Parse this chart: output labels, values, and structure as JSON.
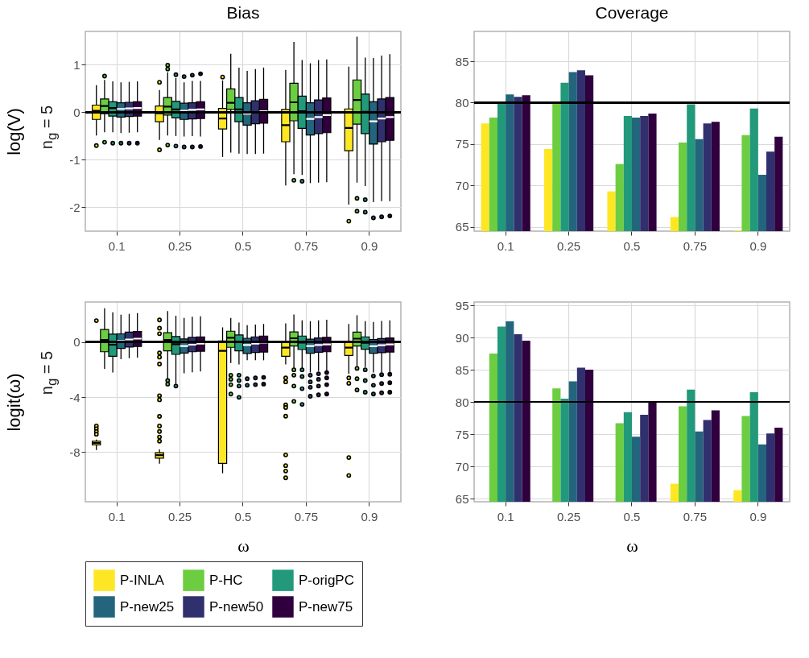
{
  "chart_data": [
    {
      "type": "box",
      "title": "Bias",
      "ylabel": "log(V)",
      "annotations": [
        "n$_{g}$ = 5"
      ],
      "categories": [
        "0.1",
        "0.25",
        "0.5",
        "0.75",
        "0.9"
      ],
      "ylim": [
        -2.5,
        1.7
      ],
      "yticks": [
        -2,
        -1,
        0,
        1
      ],
      "grid": true,
      "legend": "bottom",
      "ref_lines": [
        {
          "axis": "y",
          "value": 0
        }
      ],
      "series": [
        {
          "name": "P-INLA",
          "color": "#fde725",
          "boxes": [
            {
              "low": -0.49,
              "q1": -0.15,
              "median": 0.03,
              "q3": 0.15,
              "high": 0.57,
              "outliers": [
                -0.7
              ]
            },
            {
              "low": -0.58,
              "q1": -0.2,
              "median": -0.02,
              "q3": 0.13,
              "high": 0.47,
              "outliers": [
                0.63,
                -0.79
              ]
            },
            {
              "low": -0.94,
              "q1": -0.35,
              "median": -0.13,
              "q3": 0.08,
              "high": 0.67,
              "outliers": [
                0.74
              ]
            },
            {
              "low": -1.54,
              "q1": -0.62,
              "median": -0.27,
              "q3": 0.06,
              "high": 0.89
            },
            {
              "low": -1.94,
              "q1": -0.81,
              "median": -0.33,
              "q3": 0.07,
              "high": 0.96,
              "outliers": [
                -2.29
              ]
            }
          ]
        },
        {
          "name": "P-HC",
          "color": "#6ccd40",
          "boxes": [
            {
              "low": -0.42,
              "q1": -0.03,
              "median": 0.13,
              "q3": 0.28,
              "high": 0.68,
              "outliers": [
                0.76,
                -0.63
              ]
            },
            {
              "low": -0.49,
              "q1": -0.06,
              "median": 0.12,
              "q3": 0.31,
              "high": 0.84,
              "outliers": [
                0.99,
                0.91,
                -0.69
              ]
            },
            {
              "low": -0.85,
              "q1": 0.06,
              "median": 0.2,
              "q3": 0.49,
              "high": 1.23
            },
            {
              "low": -1.3,
              "q1": -0.18,
              "median": 0.21,
              "q3": 0.61,
              "high": 1.48,
              "outliers": [
                -1.43
              ]
            },
            {
              "low": -1.48,
              "q1": -0.25,
              "median": 0.26,
              "q3": 0.68,
              "high": 1.59,
              "outliers": [
                -1.81,
                -2.08
              ]
            }
          ]
        },
        {
          "name": "P-origPC",
          "color": "#21997a",
          "boxes": [
            {
              "low": -0.42,
              "q1": -0.08,
              "median": 0.09,
              "q3": 0.22,
              "high": 0.65,
              "outliers": [
                -0.65
              ]
            },
            {
              "low": -0.5,
              "q1": -0.12,
              "median": 0.06,
              "q3": 0.23,
              "high": 0.72,
              "outliers": [
                0.79,
                -0.71
              ]
            },
            {
              "low": -0.87,
              "q1": -0.2,
              "median": 0.06,
              "q3": 0.31,
              "high": 0.94
            },
            {
              "low": -1.32,
              "q1": -0.34,
              "median": 0.02,
              "q3": 0.34,
              "high": 1.1,
              "outliers": [
                -1.45
              ]
            },
            {
              "low": -1.55,
              "q1": -0.45,
              "median": 0.01,
              "q3": 0.38,
              "high": 1.15,
              "outliers": [
                -1.84,
                -2.1
              ]
            }
          ]
        },
        {
          "name": "P-new25",
          "color": "#23657c",
          "boxes": [
            {
              "low": -0.44,
              "q1": -0.1,
              "median": 0.07,
              "q3": 0.2,
              "high": 0.63,
              "outliers": [
                -0.65
              ]
            },
            {
              "low": -0.51,
              "q1": -0.15,
              "median": 0.03,
              "q3": 0.19,
              "high": 0.63,
              "outliers": [
                0.75,
                -0.73
              ]
            },
            {
              "low": -0.88,
              "q1": -0.27,
              "median": -0.03,
              "q3": 0.2,
              "high": 0.87
            },
            {
              "low": -1.49,
              "q1": -0.48,
              "median": -0.14,
              "q3": 0.2,
              "high": 1.03
            },
            {
              "low": -1.89,
              "q1": -0.67,
              "median": -0.19,
              "q3": 0.22,
              "high": 1.14,
              "outliers": [
                -2.22
              ]
            }
          ]
        },
        {
          "name": "P-new50",
          "color": "#31306e",
          "boxes": [
            {
              "low": -0.43,
              "q1": -0.09,
              "median": 0.08,
              "q3": 0.21,
              "high": 0.64,
              "outliers": [
                -0.65
              ]
            },
            {
              "low": -0.5,
              "q1": -0.14,
              "median": 0.05,
              "q3": 0.2,
              "high": 0.66,
              "outliers": [
                0.78,
                -0.73
              ]
            },
            {
              "low": -0.88,
              "q1": -0.24,
              "median": 0.0,
              "q3": 0.24,
              "high": 0.91
            },
            {
              "low": -1.48,
              "q1": -0.45,
              "median": -0.1,
              "q3": 0.26,
              "high": 1.1
            },
            {
              "low": -1.87,
              "q1": -0.62,
              "median": -0.13,
              "q3": 0.28,
              "high": 1.19,
              "outliers": [
                -2.2
              ]
            }
          ]
        },
        {
          "name": "P-new75",
          "color": "#30003e",
          "boxes": [
            {
              "low": -0.42,
              "q1": -0.08,
              "median": 0.09,
              "q3": 0.22,
              "high": 0.65,
              "outliers": [
                -0.65
              ]
            },
            {
              "low": -0.51,
              "q1": -0.13,
              "median": 0.06,
              "q3": 0.22,
              "high": 0.66,
              "outliers": [
                0.81,
                -0.72
              ]
            },
            {
              "low": -0.87,
              "q1": -0.23,
              "median": 0.02,
              "q3": 0.27,
              "high": 0.94
            },
            {
              "low": -1.47,
              "q1": -0.43,
              "median": -0.06,
              "q3": 0.3,
              "high": 1.11
            },
            {
              "low": -1.87,
              "q1": -0.59,
              "median": -0.1,
              "q3": 0.31,
              "high": 1.22,
              "outliers": [
                -2.18
              ]
            }
          ]
        }
      ]
    },
    {
      "type": "bar",
      "title": "Coverage",
      "categories": [
        "0.1",
        "0.25",
        "0.5",
        "0.75",
        "0.9"
      ],
      "ylim": [
        64.5,
        88.6
      ],
      "yticks": [
        65,
        70,
        75,
        80,
        85
      ],
      "grid": true,
      "legend": "bottom",
      "ref_lines": [
        {
          "axis": "y",
          "value": 80
        }
      ],
      "series": [
        {
          "name": "P-INLA",
          "color": "#fde725",
          "values": [
            77.5,
            74.4,
            69.3,
            66.2,
            64.6
          ]
        },
        {
          "name": "P-HC",
          "color": "#6ccd40",
          "values": [
            78.2,
            79.9,
            72.6,
            75.2,
            76.1
          ]
        },
        {
          "name": "P-origPC",
          "color": "#21997a",
          "values": [
            80.0,
            82.4,
            78.4,
            79.8,
            79.3
          ]
        },
        {
          "name": "P-new25",
          "color": "#23657c",
          "values": [
            81.0,
            83.7,
            78.2,
            75.6,
            71.3
          ]
        },
        {
          "name": "P-new50",
          "color": "#31306e",
          "values": [
            80.7,
            83.9,
            78.4,
            77.5,
            74.1
          ]
        },
        {
          "name": "P-new75",
          "color": "#30003e",
          "values": [
            80.9,
            83.3,
            78.7,
            77.7,
            75.9
          ]
        }
      ]
    },
    {
      "type": "box",
      "xlabel": "ω",
      "ylabel": "logit(ω)",
      "annotations": [
        "n$_{g}$ = 5"
      ],
      "categories": [
        "0.1",
        "0.25",
        "0.5",
        "0.75",
        "0.9"
      ],
      "ylim": [
        -11.6,
        2.9
      ],
      "yticks": [
        -8,
        -4,
        0
      ],
      "grid": true,
      "legend": "bottom",
      "ref_lines": [
        {
          "axis": "y",
          "value": 0
        }
      ],
      "series": [
        {
          "name": "P-INLA",
          "color": "#fde725",
          "boxes": [
            {
              "low": -7.84,
              "q1": -7.47,
              "median": -7.33,
              "q3": -7.2,
              "high": -7.08,
              "outliers": [
                1.55,
                -6.1,
                -6.3,
                -6.5,
                -6.7
              ]
            },
            {
              "low": -8.84,
              "q1": -8.43,
              "median": -8.22,
              "q3": -8.04,
              "high": -7.8,
              "outliers": [
                1.6,
                1.0,
                0.6,
                -0.8,
                -1.1,
                -1.6,
                -3.9,
                -4.2,
                -5.4,
                -6.1,
                -6.5,
                -6.9,
                -7.2
              ]
            },
            {
              "low": -9.53,
              "q1": -8.82,
              "median": -0.65,
              "q3": 0.08,
              "high": 1.06
            },
            {
              "low": -1.63,
              "q1": -1.04,
              "median": -0.41,
              "q3": 0.02,
              "high": 1.35,
              "outliers": [
                -2.61,
                -2.9,
                -4.57,
                -4.76,
                -5.39,
                -8.2,
                -8.98,
                -9.37,
                -9.86
              ]
            },
            {
              "low": -2.31,
              "q1": -0.98,
              "median": -0.41,
              "q3": 0.06,
              "high": 1.31,
              "outliers": [
                -2.61,
                -3.0,
                -8.39,
                -9.69
              ]
            }
          ]
        },
        {
          "name": "P-HC",
          "color": "#6ccd40",
          "boxes": [
            {
              "low": -1.96,
              "q1": -0.71,
              "median": 0.14,
              "q3": 0.9,
              "high": 2.45
            },
            {
              "low": -2.94,
              "q1": -0.65,
              "median": 0.14,
              "q3": 0.67,
              "high": 2.24,
              "outliers": [
                -2.8,
                -3.06
              ]
            },
            {
              "low": -1.53,
              "q1": -0.39,
              "median": 0.31,
              "q3": 0.78,
              "high": 1.75,
              "outliers": [
                -2.41,
                -2.71,
                -3.1,
                -3.78
              ]
            },
            {
              "low": -1.92,
              "q1": -0.29,
              "median": 0.27,
              "q3": 0.73,
              "high": 2.0,
              "outliers": [
                -2.02,
                -2.41,
                -3.2,
                -4.31
              ]
            },
            {
              "low": -1.76,
              "q1": -0.29,
              "median": 0.24,
              "q3": 0.71,
              "high": 1.94,
              "outliers": [
                -1.92,
                -2.67,
                -3.49
              ]
            }
          ]
        },
        {
          "name": "P-origPC",
          "color": "#21997a",
          "boxes": [
            {
              "low": -2.22,
              "q1": -1.04,
              "median": -0.2,
              "q3": 0.57,
              "high": 2.16
            },
            {
              "low": -3.1,
              "q1": -0.9,
              "median": -0.16,
              "q3": 0.39,
              "high": 1.9,
              "outliers": [
                -3.2
              ]
            },
            {
              "low": -1.63,
              "q1": -0.65,
              "median": 0.02,
              "q3": 0.51,
              "high": 1.41,
              "outliers": [
                -2.41,
                -2.8,
                -3.2,
                -4.02
              ]
            },
            {
              "low": -1.92,
              "q1": -0.55,
              "median": -0.04,
              "q3": 0.43,
              "high": 1.57,
              "outliers": [
                -2.02,
                -2.51,
                -3.39,
                -4.53
              ]
            },
            {
              "low": -1.82,
              "q1": -0.53,
              "median": -0.06,
              "q3": 0.37,
              "high": 1.51,
              "outliers": [
                -2.02,
                -2.8,
                -3.65
              ]
            }
          ]
        },
        {
          "name": "P-new25",
          "color": "#23657c",
          "boxes": [
            {
              "low": -1.25,
              "q1": -0.47,
              "median": 0.08,
              "q3": 0.59,
              "high": 1.98
            },
            {
              "low": -2.27,
              "q1": -0.8,
              "median": -0.29,
              "q3": 0.22,
              "high": 1.75
            },
            {
              "low": -1.33,
              "q1": -0.84,
              "median": -0.22,
              "q3": 0.27,
              "high": 1.22,
              "outliers": [
                -2.67,
                -3.14
              ]
            },
            {
              "low": -2.22,
              "q1": -0.82,
              "median": -0.29,
              "q3": 0.2,
              "high": 1.51,
              "outliers": [
                -2.41,
                -2.9,
                -3.29,
                -3.94
              ]
            },
            {
              "low": -2.22,
              "q1": -0.82,
              "median": -0.31,
              "q3": 0.18,
              "high": 1.45,
              "outliers": [
                -2.47,
                -3.14,
                -3.78
              ]
            }
          ]
        },
        {
          "name": "P-new50",
          "color": "#31306e",
          "boxes": [
            {
              "low": -1.18,
              "q1": -0.37,
              "median": 0.18,
              "q3": 0.71,
              "high": 2.04
            },
            {
              "low": -2.2,
              "q1": -0.71,
              "median": -0.2,
              "q3": 0.33,
              "high": 1.84
            },
            {
              "low": -1.33,
              "q1": -0.76,
              "median": -0.12,
              "q3": 0.37,
              "high": 1.27,
              "outliers": [
                -2.61,
                -3.1
              ]
            },
            {
              "low": -2.12,
              "q1": -0.75,
              "median": -0.22,
              "q3": 0.29,
              "high": 1.57,
              "outliers": [
                -2.31,
                -2.71,
                -3.2,
                -3.84
              ]
            },
            {
              "low": -2.22,
              "q1": -0.78,
              "median": -0.24,
              "q3": 0.25,
              "high": 1.53,
              "outliers": [
                -2.37,
                -3.02,
                -3.69
              ]
            }
          ]
        },
        {
          "name": "P-new75",
          "color": "#30003e",
          "boxes": [
            {
              "low": -1.14,
              "q1": -0.33,
              "median": 0.24,
              "q3": 0.76,
              "high": 2.1
            },
            {
              "low": -2.14,
              "q1": -0.67,
              "median": -0.12,
              "q3": 0.37,
              "high": 1.86
            },
            {
              "low": -1.33,
              "q1": -0.73,
              "median": -0.04,
              "q3": 0.43,
              "high": 1.31,
              "outliers": [
                -2.57,
                -3.06
              ]
            },
            {
              "low": -2.08,
              "q1": -0.71,
              "median": -0.18,
              "q3": 0.33,
              "high": 1.61,
              "outliers": [
                -2.22,
                -2.61,
                -3.1,
                -3.78
              ]
            },
            {
              "low": -2.18,
              "q1": -0.73,
              "median": -0.18,
              "q3": 0.29,
              "high": 1.57,
              "outliers": [
                -2.35,
                -2.96,
                -3.65
              ]
            }
          ]
        }
      ]
    },
    {
      "type": "bar",
      "xlabel": "ω",
      "categories": [
        "0.1",
        "0.25",
        "0.5",
        "0.75",
        "0.9"
      ],
      "ylim": [
        64.5,
        95.5
      ],
      "yticks": [
        65,
        70,
        75,
        80,
        85,
        90,
        95
      ],
      "grid": true,
      "legend": "bottom",
      "ref_lines": [
        {
          "axis": "y",
          "value": 80
        }
      ],
      "series": [
        {
          "name": "P-INLA",
          "color": "#fde725",
          "values": [
            null,
            null,
            null,
            67.3,
            66.3
          ]
        },
        {
          "name": "P-HC",
          "color": "#6ccd40",
          "values": [
            87.5,
            82.1,
            76.7,
            79.3,
            77.8
          ]
        },
        {
          "name": "P-origPC",
          "color": "#21997a",
          "values": [
            91.7,
            80.5,
            78.4,
            81.9,
            81.5
          ]
        },
        {
          "name": "P-new25",
          "color": "#23657c",
          "values": [
            92.5,
            83.2,
            74.6,
            75.4,
            73.4
          ]
        },
        {
          "name": "P-new50",
          "color": "#31306e",
          "values": [
            90.5,
            85.3,
            78.0,
            77.2,
            75.1
          ]
        },
        {
          "name": "P-new75",
          "color": "#30003e",
          "values": [
            89.5,
            85.0,
            79.9,
            78.7,
            76.0
          ]
        }
      ]
    }
  ]
}
